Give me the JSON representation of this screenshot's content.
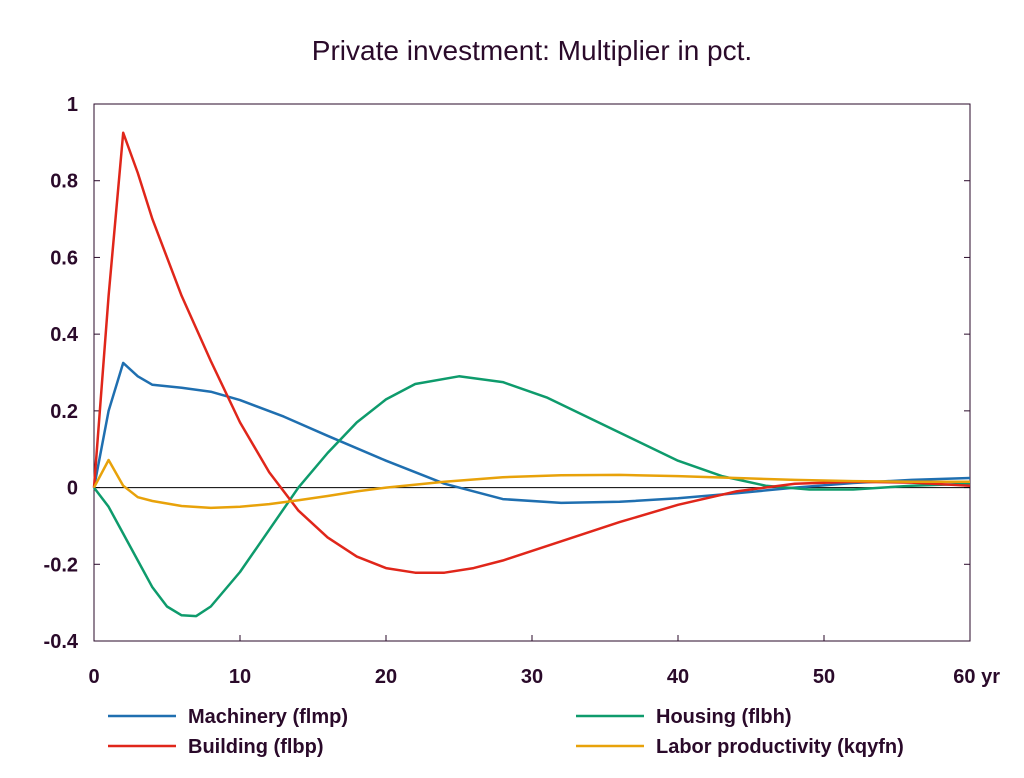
{
  "chart_data": {
    "type": "line",
    "title": "Private investment: Multiplier in pct.",
    "xlim": [
      0,
      60
    ],
    "ylim": [
      -0.4,
      1
    ],
    "x_ticks": [
      0,
      10,
      20,
      30,
      40,
      50,
      60
    ],
    "x_tick_labels": [
      "0",
      "10",
      "20",
      "30",
      "40",
      "50",
      "60 yr"
    ],
    "y_ticks": [
      -0.4,
      -0.2,
      0,
      0.2,
      0.4,
      0.6,
      0.8,
      1
    ],
    "y_tick_labels": [
      "-0.4",
      "-0.2",
      "0",
      "0.2",
      "0.4",
      "0.6",
      "0.8",
      "1"
    ],
    "legend_placement": "bottom",
    "zero_line": true,
    "grid": false,
    "series": [
      {
        "name": "Machinery (flmp)",
        "color": "#1f6fb0",
        "x": [
          0,
          1,
          2,
          3,
          4,
          6,
          8,
          10,
          13,
          16,
          20,
          24,
          28,
          32,
          36,
          40,
          44,
          48,
          52,
          56,
          60
        ],
        "y": [
          0,
          0.2,
          0.325,
          0.29,
          0.268,
          0.26,
          0.25,
          0.228,
          0.185,
          0.135,
          0.07,
          0.01,
          -0.03,
          -0.04,
          -0.037,
          -0.028,
          -0.015,
          0.0,
          0.012,
          0.02,
          0.025
        ]
      },
      {
        "name": "Housing (flbh)",
        "color": "#0e9b6c",
        "x": [
          0,
          1,
          2,
          3,
          4,
          5,
          6,
          7,
          8,
          10,
          12,
          14,
          16,
          18,
          20,
          22,
          25,
          28,
          31,
          34,
          37,
          40,
          43,
          46,
          49,
          52,
          56,
          60
        ],
        "y": [
          0,
          -0.05,
          -0.12,
          -0.19,
          -0.26,
          -0.31,
          -0.333,
          -0.335,
          -0.31,
          -0.22,
          -0.11,
          0.0,
          0.09,
          0.17,
          0.23,
          0.27,
          0.29,
          0.275,
          0.235,
          0.18,
          0.125,
          0.07,
          0.03,
          0.005,
          -0.005,
          -0.005,
          0.005,
          0.01
        ]
      },
      {
        "name": "Building (flbp)",
        "color": "#e0261a",
        "x": [
          0,
          1,
          2,
          3,
          4,
          6,
          8,
          10,
          12,
          14,
          16,
          18,
          20,
          22,
          24,
          26,
          28,
          32,
          36,
          40,
          44,
          48,
          52,
          56,
          60
        ],
        "y": [
          0,
          0.5,
          0.925,
          0.82,
          0.7,
          0.5,
          0.33,
          0.17,
          0.04,
          -0.06,
          -0.13,
          -0.18,
          -0.21,
          -0.222,
          -0.222,
          -0.21,
          -0.19,
          -0.14,
          -0.09,
          -0.045,
          -0.01,
          0.01,
          0.015,
          0.013,
          0.005
        ]
      },
      {
        "name": "Labor productivity (kqyfn)",
        "color": "#e8a20a",
        "x": [
          0,
          1,
          2,
          3,
          4,
          6,
          8,
          10,
          12,
          14,
          16,
          18,
          20,
          24,
          28,
          32,
          36,
          40,
          44,
          48,
          52,
          56,
          60
        ],
        "y": [
          0,
          0.072,
          0.005,
          -0.025,
          -0.035,
          -0.048,
          -0.053,
          -0.05,
          -0.043,
          -0.033,
          -0.022,
          -0.01,
          0.0,
          0.015,
          0.027,
          0.032,
          0.033,
          0.03,
          0.025,
          0.02,
          0.017,
          0.015,
          0.015
        ]
      }
    ]
  }
}
